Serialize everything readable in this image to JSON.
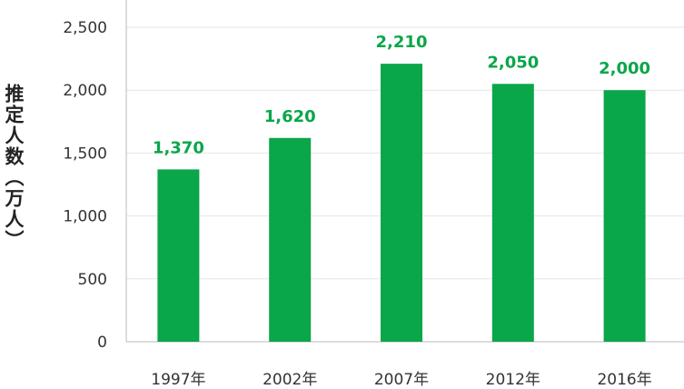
{
  "chart_data": {
    "type": "bar",
    "categories": [
      "1997年",
      "2002年",
      "2007年",
      "2012年",
      "2016年"
    ],
    "values": [
      1370,
      1620,
      2210,
      2050,
      2000
    ],
    "data_labels": [
      "1,370",
      "1,620",
      "2,210",
      "2,050",
      "2,000"
    ],
    "ylabel": "推定人数（万人）",
    "xlabel": "",
    "ylim": [
      0,
      2500
    ],
    "yticks": [
      0,
      500,
      1000,
      1500,
      2000,
      2500
    ],
    "ytick_labels": [
      "0",
      "500",
      "1,000",
      "1,500",
      "2,000",
      "2,500"
    ],
    "grid": true,
    "bar_color": "#0aa64a",
    "label_color": "#0aa64a"
  }
}
